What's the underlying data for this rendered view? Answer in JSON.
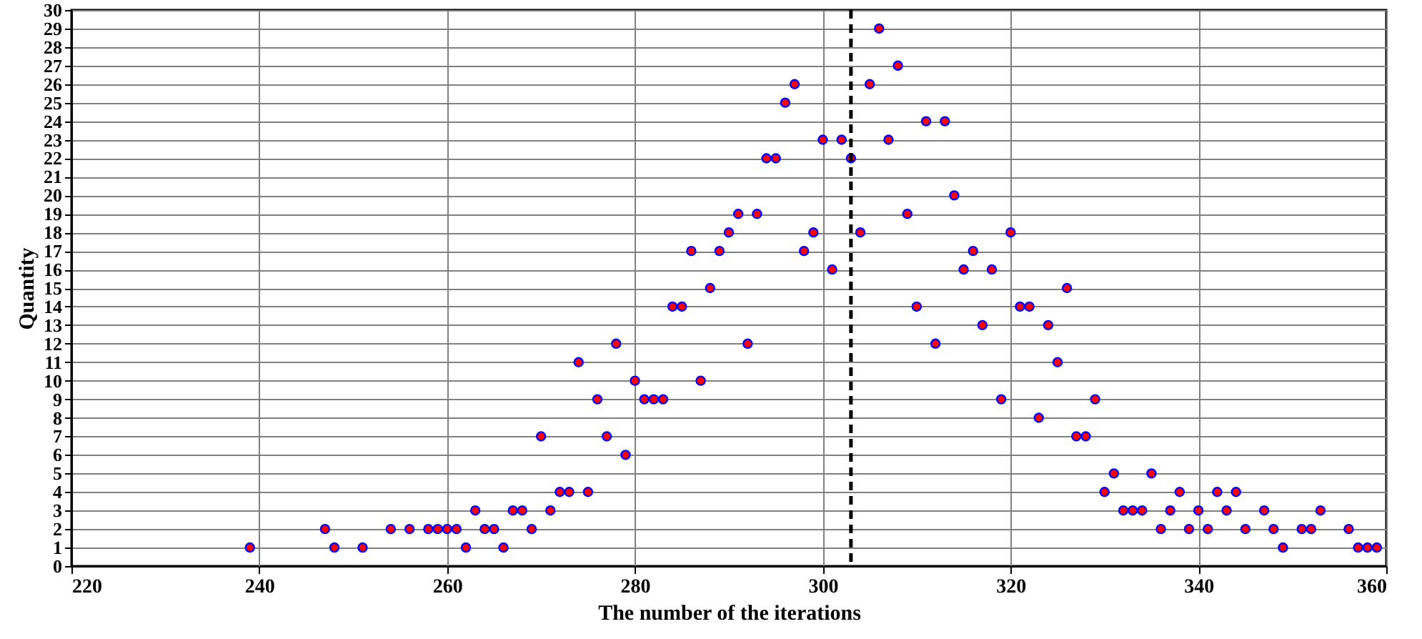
{
  "chart_data": {
    "type": "scatter",
    "xlabel": "The number of the iterations",
    "ylabel": "Quantity",
    "x": [
      239,
      247,
      248,
      251,
      254,
      256,
      258,
      259,
      260,
      261,
      262,
      263,
      264,
      265,
      266,
      267,
      268,
      269,
      270,
      271,
      272,
      273,
      274,
      275,
      276,
      277,
      278,
      279,
      280,
      281,
      282,
      283,
      284,
      285,
      286,
      287,
      288,
      289,
      290,
      291,
      292,
      293,
      294,
      295,
      296,
      297,
      298,
      299,
      300,
      301,
      302,
      303,
      304,
      305,
      306,
      307,
      308,
      309,
      310,
      311,
      312,
      313,
      314,
      315,
      316,
      317,
      318,
      319,
      320,
      321,
      322,
      323,
      324,
      325,
      326,
      327,
      328,
      329,
      330,
      331,
      332,
      333,
      334,
      335,
      336,
      337,
      338,
      339,
      340,
      341,
      342,
      343,
      344,
      345,
      347,
      348,
      349,
      351,
      352,
      353,
      356,
      357,
      358,
      359
    ],
    "series": [
      {
        "color": "#ff0000",
        "values": [
          1,
          2,
          1,
          1,
          2,
          2,
          2,
          2,
          2,
          2,
          1,
          3,
          2,
          2,
          1,
          3,
          3,
          2,
          7,
          3,
          4,
          4,
          11,
          4,
          9,
          7,
          12,
          6,
          10,
          9,
          9,
          9,
          14,
          14,
          17,
          10,
          15,
          17,
          18,
          19,
          12,
          19,
          22,
          22,
          25,
          26,
          17,
          18,
          23,
          16,
          23,
          22,
          18,
          26,
          29,
          23,
          27,
          19,
          14,
          24,
          12,
          24,
          20,
          16,
          17,
          13,
          16,
          9,
          18,
          14,
          14,
          8,
          13,
          11,
          15,
          7,
          7,
          9,
          4,
          5,
          3,
          3,
          3,
          5,
          2,
          3,
          4,
          2,
          3,
          2,
          4,
          3,
          4,
          2,
          3,
          2,
          1,
          2,
          2,
          3,
          2,
          1,
          1,
          1
        ]
      }
    ],
    "xlim": [
      220,
      360
    ],
    "xticks": [
      220,
      240,
      260,
      280,
      300,
      320,
      340,
      360
    ],
    "ylim": [
      0,
      30
    ],
    "yticks": [
      0,
      1,
      2,
      3,
      4,
      5,
      6,
      7,
      8,
      9,
      10,
      11,
      12,
      13,
      14,
      15,
      16,
      17,
      18,
      19,
      20,
      21,
      22,
      23,
      24,
      25,
      26,
      27,
      28,
      29,
      30
    ],
    "ref_lines": [
      {
        "axis": "x",
        "value": 303,
        "color": "#000000",
        "line_style": "dashed"
      }
    ],
    "grid": true,
    "marker": "circle"
  }
}
